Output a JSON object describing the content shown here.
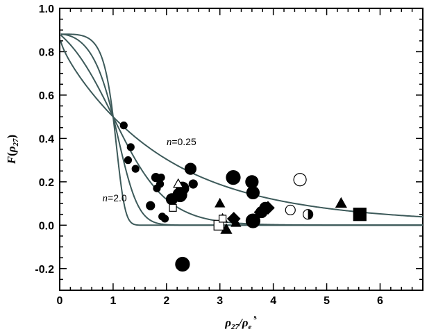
{
  "chart_data": {
    "type": "scatter",
    "title": "",
    "xlabel_parts": {
      "base": "ρ",
      "sub": "27",
      "mid": "/ρ",
      "sub2": "e",
      "sup": "s"
    },
    "ylabel_parts": {
      "func": "F",
      "open": "(",
      "base": "ρ",
      "sub": "27",
      "close": ")"
    },
    "xlim": [
      0,
      6.8
    ],
    "ylim": [
      -0.3,
      1.0
    ],
    "xticks": [
      0,
      1,
      2,
      3,
      4,
      5,
      6
    ],
    "yticks": [
      -0.2,
      0.0,
      0.2,
      0.4,
      0.6,
      0.8,
      1.0
    ],
    "xtick_labels": [
      "0",
      "1",
      "2",
      "3",
      "4",
      "5",
      "6"
    ],
    "ytick_labels": [
      "-0.2",
      "0.0",
      "0.2",
      "0.4",
      "0.6",
      "0.8",
      "1.0"
    ],
    "grid": false,
    "curve_color": "#3d5a5a",
    "curves": [
      {
        "n": 0.25,
        "label": "n=0.25"
      },
      {
        "n": 0.5,
        "label": ""
      },
      {
        "n": 1.0,
        "label": ""
      },
      {
        "n": 2.0,
        "label": "n=2.0"
      }
    ],
    "curve_labels": [
      {
        "n_text": "n",
        "rest": "=0.25",
        "x": 2.0,
        "y": 0.37
      },
      {
        "n_text": "n",
        "rest": "=2.0",
        "x": 0.8,
        "y": 0.11
      }
    ],
    "points": [
      {
        "x": 1.2,
        "y": 0.46,
        "m": "circle",
        "f": "filled",
        "s": 5
      },
      {
        "x": 1.28,
        "y": 0.3,
        "m": "circle",
        "f": "filled",
        "s": 5
      },
      {
        "x": 1.33,
        "y": 0.36,
        "m": "circle",
        "f": "filled",
        "s": 5
      },
      {
        "x": 1.42,
        "y": 0.26,
        "m": "circle",
        "f": "filled",
        "s": 5
      },
      {
        "x": 1.7,
        "y": 0.09,
        "m": "circle",
        "f": "filled",
        "s": 6
      },
      {
        "x": 1.8,
        "y": 0.22,
        "m": "circle",
        "f": "filled",
        "s": 6
      },
      {
        "x": 1.82,
        "y": 0.17,
        "m": "circle",
        "f": "filled",
        "s": 5
      },
      {
        "x": 1.88,
        "y": 0.19,
        "m": "circle",
        "f": "filled",
        "s": 5
      },
      {
        "x": 1.9,
        "y": 0.22,
        "m": "circle",
        "f": "filled",
        "s": 5
      },
      {
        "x": 1.92,
        "y": 0.04,
        "m": "circle",
        "f": "filled",
        "s": 5
      },
      {
        "x": 1.97,
        "y": 0.03,
        "m": "circle",
        "f": "filled",
        "s": 5
      },
      {
        "x": 2.1,
        "y": 0.12,
        "m": "circle",
        "f": "filled",
        "s": 8
      },
      {
        "x": 2.25,
        "y": 0.14,
        "m": "circle",
        "f": "filled",
        "s": 10
      },
      {
        "x": 2.3,
        "y": 0.17,
        "m": "circle",
        "f": "filled",
        "s": 9
      },
      {
        "x": 2.3,
        "y": -0.18,
        "m": "circle",
        "f": "filled",
        "s": 10
      },
      {
        "x": 2.45,
        "y": 0.26,
        "m": "circle",
        "f": "filled",
        "s": 8
      },
      {
        "x": 2.5,
        "y": 0.19,
        "m": "circle",
        "f": "filled",
        "s": 6
      },
      {
        "x": 3.25,
        "y": 0.22,
        "m": "circle",
        "f": "filled",
        "s": 10
      },
      {
        "x": 3.6,
        "y": 0.2,
        "m": "circle",
        "f": "filled",
        "s": 9
      },
      {
        "x": 3.62,
        "y": 0.15,
        "m": "circle",
        "f": "filled",
        "s": 9
      },
      {
        "x": 3.62,
        "y": 0.02,
        "m": "circle",
        "f": "filled",
        "s": 10
      },
      {
        "x": 3.78,
        "y": 0.06,
        "m": "circle",
        "f": "filled",
        "s": 8
      },
      {
        "x": 3.85,
        "y": 0.08,
        "m": "circle",
        "f": "filled",
        "s": 8
      },
      {
        "x": 4.5,
        "y": 0.21,
        "m": "circle",
        "f": "open",
        "s": 9
      },
      {
        "x": 4.32,
        "y": 0.07,
        "m": "circle",
        "f": "open",
        "s": 7
      },
      {
        "x": 4.65,
        "y": 0.05,
        "m": "circle",
        "f": "half",
        "s": 7
      },
      {
        "x": 2.22,
        "y": 0.19,
        "m": "triangle",
        "f": "open",
        "s": 7
      },
      {
        "x": 3.0,
        "y": 0.1,
        "m": "triangle",
        "f": "filled",
        "s": 7
      },
      {
        "x": 3.12,
        "y": -0.02,
        "m": "triangle",
        "f": "filled",
        "s": 8
      },
      {
        "x": 3.3,
        "y": 0.01,
        "m": "triangle",
        "f": "filled",
        "s": 7
      },
      {
        "x": 3.05,
        "y": 0.03,
        "m": "triangle",
        "f": "open",
        "s": 7
      },
      {
        "x": 5.27,
        "y": 0.1,
        "m": "triangle",
        "f": "filled",
        "s": 8
      },
      {
        "x": 2.12,
        "y": 0.08,
        "m": "square",
        "f": "open",
        "s": 5
      },
      {
        "x": 2.98,
        "y": 0.0,
        "m": "square",
        "f": "open",
        "s": 7
      },
      {
        "x": 3.05,
        "y": 0.03,
        "m": "square",
        "f": "open",
        "s": 5
      },
      {
        "x": 5.62,
        "y": 0.05,
        "m": "square",
        "f": "filled",
        "s": 9
      },
      {
        "x": 3.26,
        "y": 0.03,
        "m": "diamond",
        "f": "filled",
        "s": 9
      },
      {
        "x": 3.9,
        "y": 0.08,
        "m": "diamond",
        "f": "filled",
        "s": 9
      },
      {
        "x": 3.75,
        "y": 0.06,
        "m": "diamond",
        "f": "filled",
        "s": 8
      }
    ]
  }
}
